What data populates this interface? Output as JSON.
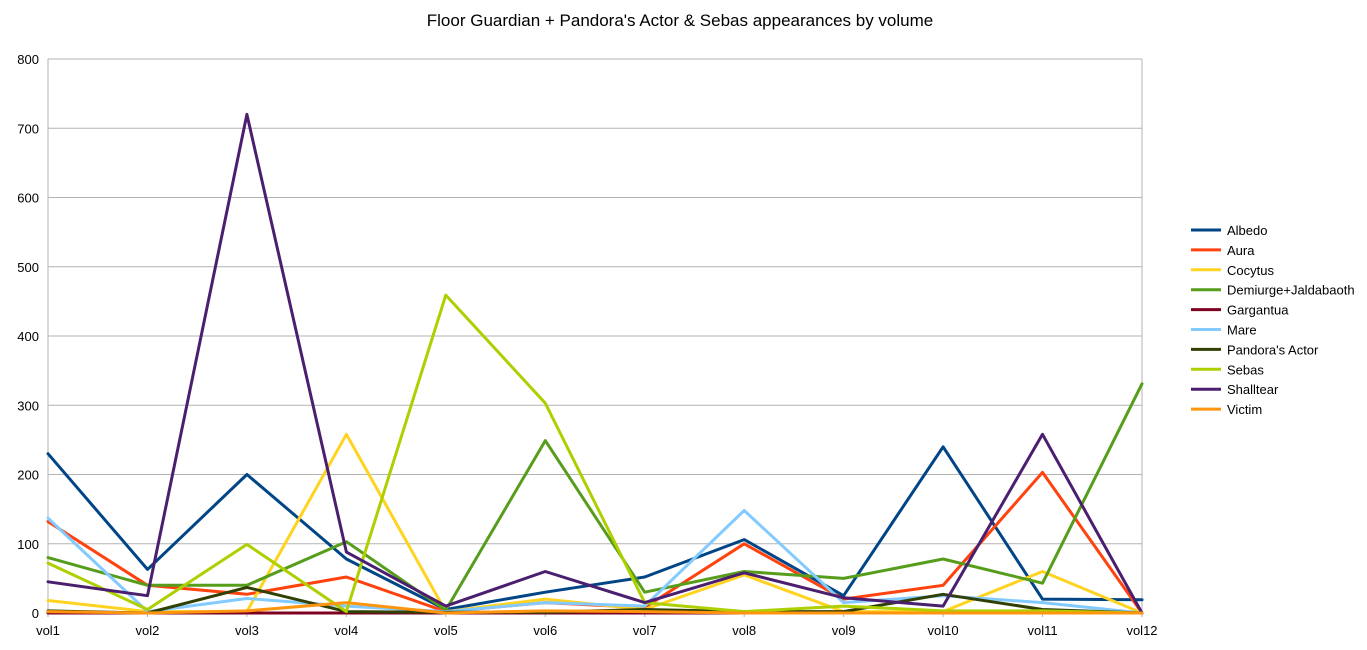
{
  "chart_data": {
    "type": "line",
    "title": "Floor Guardian + Pandora's Actor & Sebas appearances by volume",
    "xlabel": "",
    "ylabel": "",
    "categories": [
      "vol1",
      "vol2",
      "vol3",
      "vol4",
      "vol5",
      "vol6",
      "vol7",
      "vol8",
      "vol9",
      "vol10",
      "vol11",
      "vol12"
    ],
    "ylim": [
      0,
      800
    ],
    "yticks": [
      "0",
      "100",
      "200",
      "300",
      "400",
      "500",
      "600",
      "700",
      "800"
    ],
    "grid": "horizontal",
    "legend_position": "right",
    "series": [
      {
        "name": "Albedo",
        "color": "#004586",
        "values": [
          230,
          63,
          200,
          78,
          5,
          30,
          52,
          106,
          25,
          240,
          20,
          19
        ]
      },
      {
        "name": "Aura",
        "color": "#ff420e",
        "values": [
          132,
          40,
          27,
          52,
          2,
          15,
          8,
          100,
          20,
          40,
          203,
          0
        ]
      },
      {
        "name": "Cocytus",
        "color": "#ffd320",
        "values": [
          18,
          2,
          2,
          258,
          2,
          20,
          5,
          55,
          2,
          2,
          60,
          0
        ]
      },
      {
        "name": "Demiurge+Jaldabaoth",
        "color": "#579d1c",
        "values": [
          80,
          40,
          40,
          103,
          4,
          249,
          30,
          60,
          50,
          78,
          43,
          331
        ]
      },
      {
        "name": "Gargantua",
        "color": "#7e0021",
        "values": [
          0,
          0,
          0,
          0,
          0,
          0,
          0,
          0,
          0,
          0,
          0,
          0
        ]
      },
      {
        "name": "Mare",
        "color": "#83caff",
        "values": [
          137,
          2,
          21,
          10,
          2,
          15,
          10,
          148,
          15,
          25,
          15,
          0
        ]
      },
      {
        "name": "Pandora's Actor",
        "color": "#314004",
        "values": [
          3,
          0,
          37,
          2,
          1,
          1,
          5,
          2,
          2,
          27,
          5,
          0
        ]
      },
      {
        "name": "Sebas",
        "color": "#aecf00",
        "values": [
          72,
          5,
          99,
          2,
          459,
          303,
          15,
          2,
          10,
          3,
          3,
          0
        ]
      },
      {
        "name": "Shalltear",
        "color": "#4b1f6f",
        "values": [
          45,
          25,
          720,
          88,
          10,
          60,
          15,
          58,
          22,
          10,
          258,
          0
        ]
      },
      {
        "name": "Victim",
        "color": "#ff950e",
        "values": [
          2,
          0,
          3,
          15,
          0,
          3,
          2,
          0,
          0,
          0,
          0,
          0
        ]
      }
    ]
  }
}
